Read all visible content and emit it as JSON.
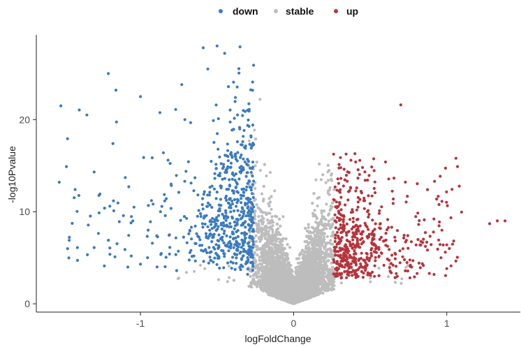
{
  "chart_data": {
    "type": "scatter",
    "title": "",
    "xlabel": "logFoldChange",
    "ylabel": "-log10Pvalue",
    "xlim": [
      -1.68,
      1.48
    ],
    "ylim": [
      -0.9,
      29.2
    ],
    "x_ticks": [
      -1,
      0,
      1
    ],
    "x_tick_labels": [
      "-1",
      "0",
      "1"
    ],
    "y_ticks": [
      0,
      10,
      20
    ],
    "y_tick_labels": [
      "0",
      "10",
      "20"
    ],
    "grid": false,
    "legend_position": "top",
    "point_counts_estimated": {
      "down": 620,
      "stable": 6800,
      "up": 520
    },
    "series": [
      {
        "name": "down",
        "color": "#3a7bbf",
        "sample_points": [
          [
            -1.52,
            21.5
          ],
          [
            -1.53,
            13.2
          ],
          [
            -1.35,
            20.5
          ],
          [
            -1.21,
            25.0
          ],
          [
            -1.16,
            23.2
          ],
          [
            -1.18,
            17.4
          ],
          [
            -1.2,
            10.6
          ],
          [
            -1.0,
            22.5
          ],
          [
            -1.05,
            9.0
          ],
          [
            -1.0,
            4.3
          ],
          [
            -0.95,
            8.0
          ],
          [
            -0.85,
            16.4
          ],
          [
            -0.82,
            15.6
          ],
          [
            -0.8,
            13.0
          ],
          [
            -0.77,
            21.1
          ],
          [
            -0.73,
            23.8
          ],
          [
            -0.71,
            20.0
          ],
          [
            -0.59,
            27.8
          ],
          [
            -0.56,
            25.5
          ],
          [
            -0.5,
            28.0
          ],
          [
            -0.45,
            27.2
          ],
          [
            -0.35,
            27.9
          ],
          [
            -0.38,
            22.4
          ],
          [
            -0.3,
            3.2
          ],
          [
            -0.27,
            6.1
          ]
        ]
      },
      {
        "name": "stable",
        "color": "#bdbdbd",
        "sample_points": [
          [
            0.0,
            0.2
          ],
          [
            -0.1,
            2.0
          ],
          [
            0.1,
            2.0
          ],
          [
            -0.2,
            6.0
          ],
          [
            0.2,
            5.5
          ],
          [
            -0.25,
            15.0
          ],
          [
            -0.22,
            22.2
          ],
          [
            0.18,
            13.5
          ],
          [
            -0.75,
            2.8
          ],
          [
            0.5,
            2.8
          ]
        ]
      },
      {
        "name": "up",
        "color": "#b8333b",
        "sample_points": [
          [
            0.7,
            21.6
          ],
          [
            1.06,
            15.8
          ],
          [
            1.07,
            14.9
          ],
          [
            1.0,
            6.4
          ],
          [
            1.28,
            8.7
          ],
          [
            1.33,
            9.0
          ],
          [
            1.38,
            9.0
          ],
          [
            0.92,
            13.3
          ],
          [
            0.28,
            3.0
          ],
          [
            0.4,
            16.3
          ],
          [
            0.6,
            15.4
          ],
          [
            0.45,
            14.8
          ],
          [
            0.3,
            11.0
          ]
        ]
      }
    ]
  }
}
